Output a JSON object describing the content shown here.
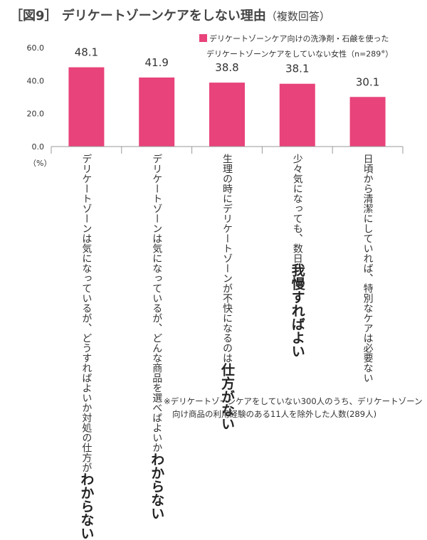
{
  "title": {
    "main": "［図9］ デリケートゾーンケアをしない理由",
    "sub": "（複数回答）"
  },
  "unit_label": "（%）",
  "legend": {
    "line1": "デリケートゾーンケア向けの洗浄剤・石鹸を使った",
    "line2": "デリケートゾーンケアをしていない女性（n=289",
    "mark": "※",
    "close": "）"
  },
  "bar_color": "#e8437a",
  "categories": [
    {
      "normal": "デリケートゾーンは気になっているが、どうすればよいか対処の仕方が",
      "bold": "わからない",
      "after": ""
    },
    {
      "normal": "デリケートゾーンは気になっているが、どんな商品を選べばよいか",
      "bold": "わからない",
      "after": ""
    },
    {
      "normal": "生理の時にデリケートゾーンが不快になるのは",
      "bold": "仕方がない",
      "after": ""
    },
    {
      "normal": "少々気になっても、数日",
      "bold": "我慢すればよい",
      "after": ""
    },
    {
      "normal": "日頃から清潔にしていれば、特別なケアは必要ない",
      "bold": "",
      "after": ""
    }
  ],
  "chart_data": {
    "type": "bar",
    "categories": [
      "デリケートゾーンは気になっているが、どうすればよいか対処の仕方がわからない",
      "デリケートゾーンは気になっているが、どんな商品を選べばよいかわからない",
      "生理の時にデリケートゾーンが不快になるのは仕方がない",
      "少々気になっても、数日我慢すればよい",
      "日頃から清潔にしていれば、特別なケアは必要ない"
    ],
    "values": [
      48.1,
      41.9,
      38.8,
      38.1,
      30.1
    ],
    "value_labels": [
      "48.1",
      "41.9",
      "38.8",
      "38.1",
      "30.1"
    ],
    "yticks": [
      "0.0",
      "20.0",
      "40.0",
      "60.0"
    ],
    "ytick_values": [
      0,
      20,
      40,
      60
    ],
    "ylim": [
      0,
      60
    ],
    "grid": false,
    "legend_position": "top-right"
  },
  "footnote": {
    "line1": "※デリケートゾーンケアをしていない300人のうち、デリケートゾーン",
    "line2": "向け商品の利用経験のある11人を除外した人数(289人)"
  }
}
